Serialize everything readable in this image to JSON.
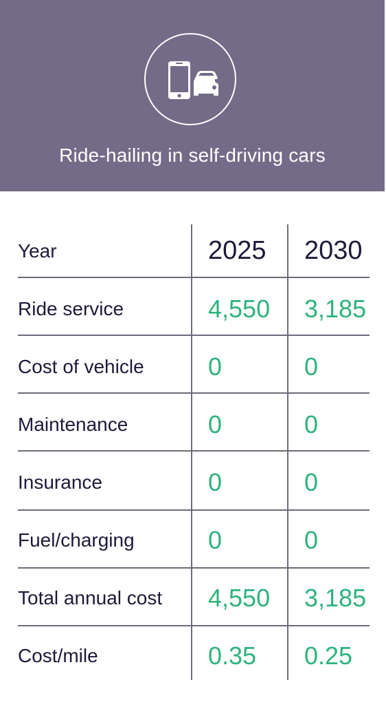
{
  "header": {
    "title": "Ride-hailing in self-driving cars",
    "icon": "phone-and-car-icon",
    "background_color": "#746b88"
  },
  "table": {
    "columns": [
      "Year",
      "2025",
      "2030"
    ],
    "rows": [
      {
        "label": "Ride service",
        "v2025": "4,550",
        "v2030": "3,185"
      },
      {
        "label": "Cost of vehicle",
        "v2025": "0",
        "v2030": "0"
      },
      {
        "label": "Maintenance",
        "v2025": "0",
        "v2030": "0"
      },
      {
        "label": "Insurance",
        "v2025": "0",
        "v2030": "0"
      },
      {
        "label": "Fuel/charging",
        "v2025": "0",
        "v2030": "0"
      },
      {
        "label": "Total annual cost",
        "v2025": "4,550",
        "v2030": "3,185"
      },
      {
        "label": "Cost/mile",
        "v2025": "0.35",
        "v2030": "0.25"
      }
    ],
    "label_color": "#1d1a3a",
    "value_color": "#2db37d"
  }
}
